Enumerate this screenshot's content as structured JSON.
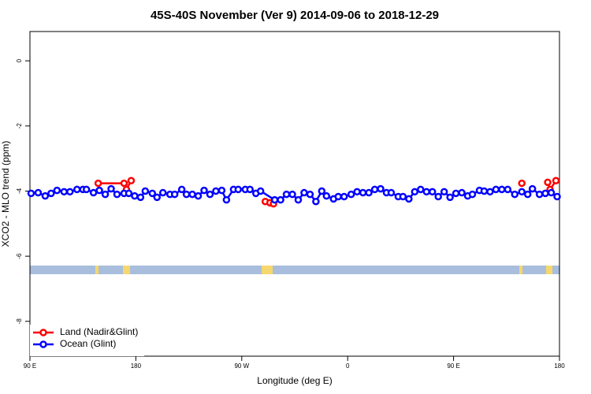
{
  "chart_data": {
    "type": "line",
    "title": "45S-40S November (Ver 9)   2014-09-06 to 2018-12-29",
    "x_label": "Longitude (deg E)",
    "y_label": "XCO2 - MLO trend (ppm)",
    "xlim": [
      90,
      540
    ],
    "ylim": [
      -9.07,
      0.9
    ],
    "xticks": [
      {
        "value": 90,
        "label": "90 E"
      },
      180,
      {
        "value": 270,
        "label": "90 W"
      },
      {
        "value": 360,
        "label": "0"
      },
      {
        "value": 450,
        "label": "90 E"
      },
      {
        "value": 540,
        "label": "180"
      }
    ],
    "yticks": [
      0,
      -2,
      -4,
      -6,
      -8
    ],
    "legend": "bottomleft",
    "series": [
      {
        "name": "Land (Nadir&Glint)",
        "color": "#ff0000",
        "x": [
          148,
          170,
          172,
          176,
          null,
          290,
          294,
          297,
          null,
          508,
          null,
          530,
          532,
          537
        ],
        "values": [
          -3.76,
          -3.76,
          -3.95,
          -3.68,
          null,
          -4.32,
          -4.36,
          -4.39,
          null,
          -3.76,
          null,
          -3.73,
          -3.95,
          -3.68
        ]
      },
      {
        "name": "Ocean (Glint)",
        "color": "#0000ff",
        "x": [
          91,
          97,
          103,
          108,
          113,
          119,
          124,
          130,
          135,
          138,
          144,
          149,
          154,
          159,
          164,
          170,
          174,
          179,
          184,
          188,
          194,
          198,
          203,
          209,
          213,
          219,
          223,
          228,
          233,
          238,
          243,
          248,
          253,
          257,
          263,
          267,
          273,
          277,
          282,
          286,
          298,
          303,
          308,
          313,
          318,
          323,
          328,
          333,
          338,
          342,
          348,
          352,
          357,
          363,
          368,
          373,
          378,
          383,
          388,
          393,
          397,
          403,
          407,
          412,
          417,
          422,
          427,
          432,
          437,
          442,
          447,
          452,
          457,
          462,
          466,
          472,
          476,
          481,
          486,
          491,
          496,
          502,
          508,
          513,
          517,
          523,
          528,
          533,
          538
        ],
        "values": [
          -4.07,
          -4.05,
          -4.15,
          -4.07,
          -3.98,
          -4.02,
          -4.02,
          -3.95,
          -3.95,
          -3.95,
          -4.05,
          -3.98,
          -4.1,
          -3.93,
          -4.1,
          -4.07,
          -4.07,
          -4.15,
          -4.19,
          -4.0,
          -4.07,
          -4.19,
          -4.05,
          -4.1,
          -4.1,
          -3.95,
          -4.1,
          -4.1,
          -4.15,
          -3.98,
          -4.1,
          -4.0,
          -3.98,
          -4.27,
          -3.95,
          -3.95,
          -3.95,
          -3.95,
          -4.07,
          -4.0,
          -4.27,
          -4.27,
          -4.1,
          -4.1,
          -4.27,
          -4.05,
          -4.1,
          -4.32,
          -4.0,
          -4.15,
          -4.24,
          -4.17,
          -4.17,
          -4.1,
          -4.02,
          -4.05,
          -4.05,
          -3.95,
          -3.93,
          -4.05,
          -4.05,
          -4.17,
          -4.17,
          -4.24,
          -4.02,
          -3.95,
          -4.02,
          -4.02,
          -4.17,
          -4.02,
          -4.19,
          -4.07,
          -4.05,
          -4.15,
          -4.1,
          -3.98,
          -4.0,
          -4.02,
          -3.95,
          -3.95,
          -3.95,
          -4.1,
          -4.02,
          -4.1,
          -3.93,
          -4.1,
          -4.07,
          -4.05,
          -4.17
        ]
      }
    ]
  }
}
